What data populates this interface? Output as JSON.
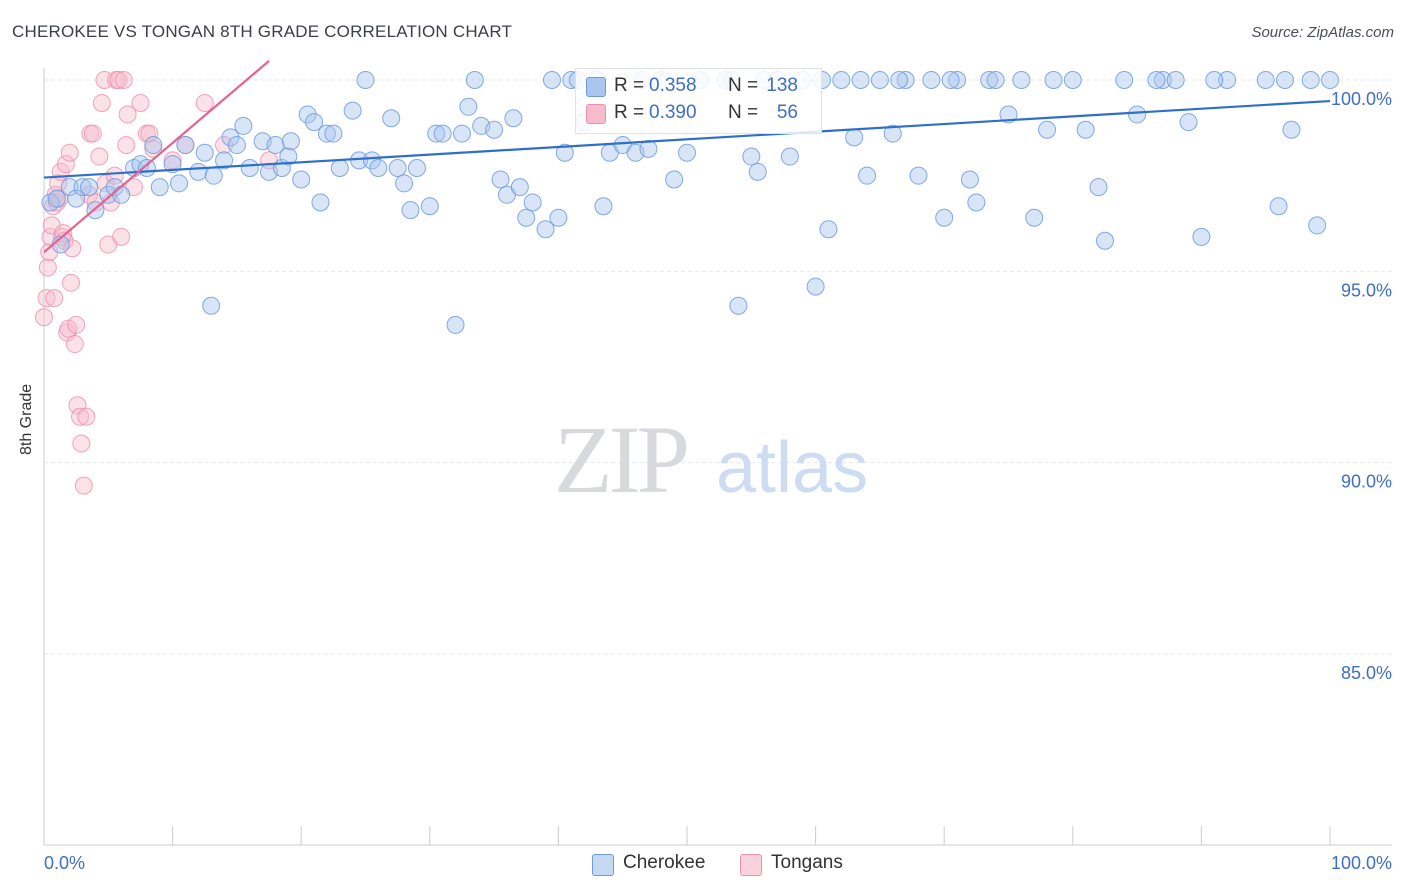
{
  "title": "CHEROKEE VS TONGAN 8TH GRADE CORRELATION CHART",
  "source": "Source: ZipAtlas.com",
  "watermark": {
    "zip": "ZIP",
    "atlas": "atlas"
  },
  "colors": {
    "blue_fill": "#a9c6ee",
    "blue_stroke": "#6f9ae0",
    "blue_line": "#2f6fcc",
    "pink_fill": "#f6bccd",
    "pink_stroke": "#ec8fab",
    "pink_line": "#e8608d",
    "axis_text": "#3e6fc2",
    "grid": "#e4e7eb"
  },
  "legend": {
    "rows": [
      {
        "series": "Cherokee",
        "r_label": "R =",
        "r_value": "0.358",
        "n_label": "N =",
        "n_value": "138"
      },
      {
        "series": "Tongans",
        "r_label": "R =",
        "r_value": "0.390",
        "n_label": "N =",
        "n_value": "56"
      }
    ]
  },
  "bottom_legend": [
    "Cherokee",
    "Tongans"
  ],
  "chart_data": {
    "type": "scatter",
    "title": "CHEROKEE VS TONGAN 8TH GRADE CORRELATION CHART",
    "xlabel": "",
    "ylabel": "8th Grade",
    "xlim": [
      0,
      100
    ],
    "ylim": [
      80.0,
      100.5
    ],
    "x_tick_labels": {
      "left": "0.0%",
      "right": "100.0%"
    },
    "y_ticks": [
      {
        "value": 100.0,
        "label": "100.0%"
      },
      {
        "value": 95.0,
        "label": "95.0%"
      },
      {
        "value": 90.0,
        "label": "90.0%"
      },
      {
        "value": 85.0,
        "label": "85.0%"
      }
    ],
    "grid": true,
    "series": [
      {
        "name": "Cherokee",
        "r": 0.358,
        "n": 138,
        "trend": {
          "x0": 0,
          "y0": 97.45,
          "x1": 100,
          "y1": 99.45
        },
        "points": [
          [
            0.5,
            96.8
          ],
          [
            1.0,
            96.9
          ],
          [
            1.3,
            95.7
          ],
          [
            2.0,
            97.2
          ],
          [
            2.5,
            96.9
          ],
          [
            3.0,
            97.2
          ],
          [
            3.5,
            97.2
          ],
          [
            4.0,
            96.6
          ],
          [
            5.0,
            97.0
          ],
          [
            5.5,
            97.2
          ],
          [
            6.0,
            97.0
          ],
          [
            7.0,
            97.7
          ],
          [
            7.5,
            97.8
          ],
          [
            8.0,
            97.7
          ],
          [
            8.5,
            98.3
          ],
          [
            9.0,
            97.2
          ],
          [
            10.0,
            97.8
          ],
          [
            10.5,
            97.3
          ],
          [
            11.0,
            98.3
          ],
          [
            12.0,
            97.6
          ],
          [
            12.5,
            98.1
          ],
          [
            13.0,
            94.1
          ],
          [
            13.2,
            97.5
          ],
          [
            14.0,
            97.9
          ],
          [
            14.5,
            98.5
          ],
          [
            15.0,
            98.3
          ],
          [
            15.5,
            98.8
          ],
          [
            16.0,
            97.7
          ],
          [
            17.0,
            98.4
          ],
          [
            17.5,
            97.6
          ],
          [
            18.0,
            98.3
          ],
          [
            18.5,
            97.7
          ],
          [
            19.0,
            98.0
          ],
          [
            19.2,
            98.4
          ],
          [
            20.0,
            97.4
          ],
          [
            20.5,
            99.1
          ],
          [
            21.0,
            98.9
          ],
          [
            21.5,
            96.8
          ],
          [
            22.0,
            98.6
          ],
          [
            22.5,
            98.6
          ],
          [
            23.0,
            97.7
          ],
          [
            24.0,
            99.2
          ],
          [
            24.5,
            97.9
          ],
          [
            25.0,
            100.0
          ],
          [
            25.5,
            97.9
          ],
          [
            26.0,
            97.7
          ],
          [
            27.0,
            99.0
          ],
          [
            27.5,
            97.7
          ],
          [
            28.0,
            97.3
          ],
          [
            28.5,
            96.6
          ],
          [
            29.0,
            97.7
          ],
          [
            30.0,
            96.7
          ],
          [
            30.5,
            98.6
          ],
          [
            31.0,
            98.6
          ],
          [
            32.0,
            93.6
          ],
          [
            32.5,
            98.6
          ],
          [
            33.0,
            99.3
          ],
          [
            33.5,
            100.0
          ],
          [
            34.0,
            98.8
          ],
          [
            35.0,
            98.7
          ],
          [
            35.5,
            97.4
          ],
          [
            36.0,
            97.0
          ],
          [
            36.5,
            99.0
          ],
          [
            37.0,
            97.2
          ],
          [
            37.5,
            96.4
          ],
          [
            38.0,
            96.8
          ],
          [
            39.0,
            96.1
          ],
          [
            39.5,
            100.0
          ],
          [
            40.0,
            96.4
          ],
          [
            40.5,
            98.1
          ],
          [
            41.0,
            100.0
          ],
          [
            42.0,
            98.9
          ],
          [
            43.0,
            100.0
          ],
          [
            43.5,
            96.7
          ],
          [
            44.0,
            98.1
          ],
          [
            45.0,
            98.3
          ],
          [
            46.0,
            98.1
          ],
          [
            46.5,
            100.0
          ],
          [
            47.0,
            98.2
          ],
          [
            48.0,
            100.0
          ],
          [
            49.0,
            97.4
          ],
          [
            50.0,
            98.1
          ],
          [
            51.0,
            100.0
          ],
          [
            53.0,
            100.0
          ],
          [
            54.0,
            94.1
          ],
          [
            55.0,
            98.0
          ],
          [
            55.5,
            97.6
          ],
          [
            56.0,
            100.0
          ],
          [
            57.0,
            100.0
          ],
          [
            58.0,
            98.0
          ],
          [
            59.0,
            100.0
          ],
          [
            60.0,
            94.6
          ],
          [
            60.5,
            100.0
          ],
          [
            61.0,
            96.1
          ],
          [
            62.0,
            100.0
          ],
          [
            63.0,
            98.5
          ],
          [
            63.5,
            100.0
          ],
          [
            64.0,
            97.5
          ],
          [
            65.0,
            100.0
          ],
          [
            66.0,
            98.6
          ],
          [
            67.0,
            100.0
          ],
          [
            68.0,
            97.5
          ],
          [
            69.0,
            100.0
          ],
          [
            70.0,
            96.4
          ],
          [
            71.0,
            100.0
          ],
          [
            72.0,
            97.4
          ],
          [
            72.5,
            96.8
          ],
          [
            73.5,
            100.0
          ],
          [
            74.0,
            100.0
          ],
          [
            75.0,
            99.1
          ],
          [
            77.0,
            96.4
          ],
          [
            78.0,
            98.7
          ],
          [
            78.5,
            100.0
          ],
          [
            80.0,
            100.0
          ],
          [
            81.0,
            98.7
          ],
          [
            82.0,
            97.2
          ],
          [
            82.5,
            95.8
          ],
          [
            84.0,
            100.0
          ],
          [
            85.0,
            99.1
          ],
          [
            87.0,
            100.0
          ],
          [
            88.0,
            100.0
          ],
          [
            89.0,
            98.9
          ],
          [
            90.0,
            95.9
          ],
          [
            92.0,
            100.0
          ],
          [
            95.0,
            100.0
          ],
          [
            96.0,
            96.7
          ],
          [
            96.5,
            100.0
          ],
          [
            97.0,
            98.7
          ],
          [
            98.5,
            100.0
          ],
          [
            100.0,
            100.0
          ],
          [
            99.0,
            96.2
          ],
          [
            91.0,
            100.0
          ],
          [
            86.5,
            100.0
          ],
          [
            76.0,
            100.0
          ],
          [
            70.5,
            100.0
          ],
          [
            66.5,
            100.0
          ],
          [
            53.5,
            100.0
          ],
          [
            41.5,
            100.0
          ]
        ]
      },
      {
        "name": "Tongans",
        "r": 0.39,
        "n": 56,
        "trend": {
          "x0": 0,
          "y0": 95.5,
          "x1": 17.5,
          "y1": 100.5
        },
        "points": [
          [
            0.0,
            93.8
          ],
          [
            0.2,
            94.3
          ],
          [
            0.3,
            95.1
          ],
          [
            0.4,
            95.5
          ],
          [
            0.5,
            95.9
          ],
          [
            0.6,
            96.2
          ],
          [
            0.7,
            96.7
          ],
          [
            0.8,
            94.3
          ],
          [
            0.9,
            97.0
          ],
          [
            1.0,
            96.8
          ],
          [
            1.1,
            97.3
          ],
          [
            1.2,
            96.9
          ],
          [
            1.3,
            97.6
          ],
          [
            1.4,
            95.9
          ],
          [
            1.5,
            96.0
          ],
          [
            1.6,
            95.8
          ],
          [
            1.7,
            97.8
          ],
          [
            1.8,
            93.4
          ],
          [
            1.9,
            93.5
          ],
          [
            2.0,
            98.1
          ],
          [
            2.1,
            94.7
          ],
          [
            2.2,
            95.6
          ],
          [
            2.4,
            93.1
          ],
          [
            2.5,
            93.6
          ],
          [
            2.6,
            91.5
          ],
          [
            2.8,
            91.2
          ],
          [
            2.9,
            90.5
          ],
          [
            3.1,
            89.4
          ],
          [
            3.3,
            91.2
          ],
          [
            3.5,
            97.0
          ],
          [
            3.6,
            98.6
          ],
          [
            3.8,
            98.6
          ],
          [
            4.0,
            96.8
          ],
          [
            4.3,
            98.0
          ],
          [
            4.5,
            99.4
          ],
          [
            4.7,
            100.0
          ],
          [
            4.8,
            97.3
          ],
          [
            5.0,
            95.7
          ],
          [
            5.2,
            96.8
          ],
          [
            5.5,
            97.5
          ],
          [
            5.6,
            100.0
          ],
          [
            5.8,
            100.0
          ],
          [
            6.0,
            95.9
          ],
          [
            6.2,
            100.0
          ],
          [
            6.4,
            98.3
          ],
          [
            6.5,
            99.1
          ],
          [
            7.0,
            97.2
          ],
          [
            7.5,
            99.4
          ],
          [
            8.0,
            98.6
          ],
          [
            8.2,
            98.6
          ],
          [
            8.5,
            98.2
          ],
          [
            10.0,
            97.9
          ],
          [
            11.0,
            98.3
          ],
          [
            12.5,
            99.4
          ],
          [
            14.0,
            98.3
          ],
          [
            17.5,
            97.9
          ]
        ]
      }
    ]
  }
}
